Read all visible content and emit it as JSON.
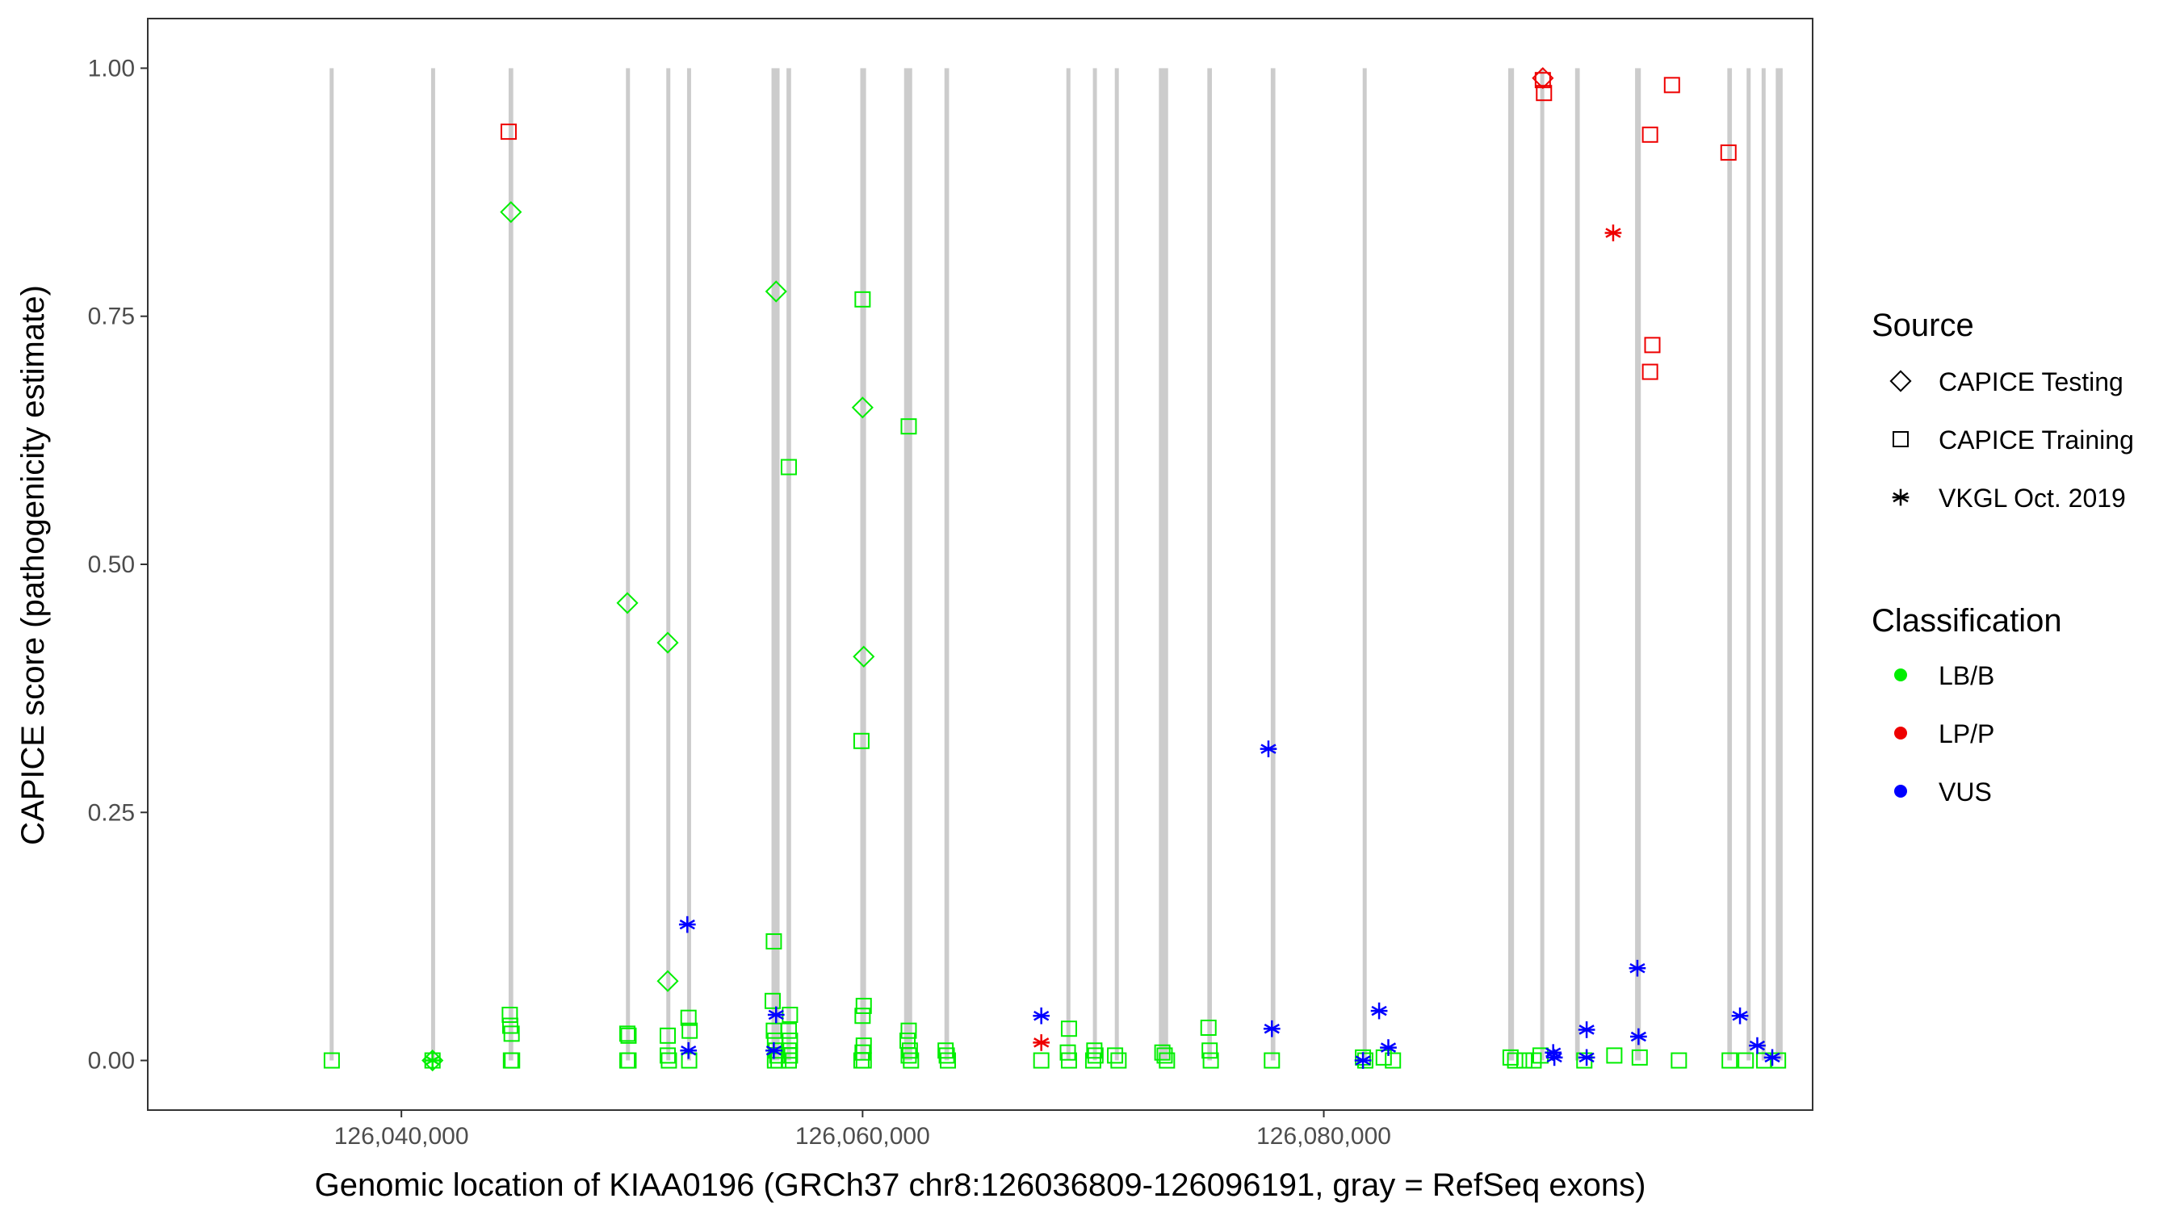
{
  "chart_data": {
    "type": "scatter",
    "xlabel": "Genomic location of KIAA0196 (GRCh37 chr8:126036809-126096191, gray = RefSeq exons)",
    "ylabel": "CAPICE score (pathogenicity estimate)",
    "xlim": [
      126029000,
      126101200
    ],
    "ylim": [
      -0.05,
      1.05
    ],
    "x_ticks": [
      126040000,
      126060000,
      126080000
    ],
    "x_tick_labels": [
      "126,040,000",
      "126,060,000",
      "126,080,000"
    ],
    "y_ticks": [
      0,
      0.25,
      0.5,
      0.75,
      1
    ],
    "y_tick_labels": [
      "0.00",
      "0.25",
      "0.50",
      "0.75",
      "1.00"
    ],
    "grid": false,
    "exons": [
      [
        126036900,
        126037050
      ],
      [
        126041300,
        126041450
      ],
      [
        126044650,
        126044850
      ],
      [
        126049750,
        126049900
      ],
      [
        126051500,
        126051650
      ],
      [
        126052400,
        126052550
      ],
      [
        126056050,
        126056400
      ],
      [
        126056700,
        126056900
      ],
      [
        126059900,
        126060150
      ],
      [
        126061800,
        126062150
      ],
      [
        126063550,
        126063750
      ],
      [
        126068850,
        126069000
      ],
      [
        126070000,
        126070150
      ],
      [
        126070950,
        126071100
      ],
      [
        126072850,
        126073250
      ],
      [
        126074950,
        126075150
      ],
      [
        126077700,
        126077900
      ],
      [
        126081700,
        126081850
      ],
      [
        126088000,
        126088250
      ],
      [
        126089400,
        126089550
      ],
      [
        126090900,
        126091100
      ],
      [
        126093500,
        126093750
      ],
      [
        126097500,
        126097700
      ],
      [
        126098350,
        126098500
      ],
      [
        126099000,
        126099150
      ],
      [
        126099600,
        126099900
      ]
    ],
    "legend": {
      "position": "right",
      "source_title": "Source",
      "source_items": [
        {
          "label": "CAPICE Testing",
          "shape": "diamond"
        },
        {
          "label": "CAPICE Training",
          "shape": "square"
        },
        {
          "label": "VKGL Oct. 2019",
          "shape": "asterisk"
        }
      ],
      "class_title": "Classification",
      "class_items": [
        {
          "label": "LB/B",
          "color": "#00ee00"
        },
        {
          "label": "LP/P",
          "color": "#ee0000"
        },
        {
          "label": "VUS",
          "color": "#0000ff"
        }
      ]
    },
    "series": [
      {
        "source": "CAPICE Testing",
        "class": "LB/B",
        "shape": "diamond",
        "color": "#00ee00",
        "points": [
          [
            126044750,
            0.855
          ],
          [
            126049800,
            0.461
          ],
          [
            126051550,
            0.421
          ],
          [
            126051550,
            0.08
          ],
          [
            126056250,
            0.775
          ],
          [
            126060000,
            0.658
          ],
          [
            126060050,
            0.407
          ],
          [
            126041350,
            0.0
          ]
        ]
      },
      {
        "source": "CAPICE Testing",
        "class": "LP/P",
        "shape": "diamond",
        "color": "#ee0000",
        "points": [
          [
            126089500,
            0.99
          ]
        ]
      },
      {
        "source": "CAPICE Training",
        "class": "LB/B",
        "shape": "square",
        "color": "#00ee00",
        "points": [
          [
            126036980,
            0.0
          ],
          [
            126041350,
            0.0
          ],
          [
            126044700,
            0.046
          ],
          [
            126044720,
            0.035
          ],
          [
            126044780,
            0.027
          ],
          [
            126044750,
            0.0
          ],
          [
            126044800,
            0.0
          ],
          [
            126049800,
            0.027
          ],
          [
            126049850,
            0.025
          ],
          [
            126049800,
            0.0
          ],
          [
            126049850,
            0.0
          ],
          [
            126051550,
            0.025
          ],
          [
            126051550,
            0.005
          ],
          [
            126051600,
            0.0
          ],
          [
            126052450,
            0.043
          ],
          [
            126052500,
            0.03
          ],
          [
            126052480,
            0.0
          ],
          [
            126056150,
            0.12
          ],
          [
            126056100,
            0.06
          ],
          [
            126056150,
            0.03
          ],
          [
            126056200,
            0.02
          ],
          [
            126056250,
            0.01
          ],
          [
            126056300,
            0.005
          ],
          [
            126056200,
            0.0
          ],
          [
            126056350,
            0.0
          ],
          [
            126056800,
            0.598
          ],
          [
            126056850,
            0.046
          ],
          [
            126056800,
            0.03
          ],
          [
            126056850,
            0.02
          ],
          [
            126056800,
            0.01
          ],
          [
            126056850,
            0.005
          ],
          [
            126056800,
            0.0
          ],
          [
            126060000,
            0.767
          ],
          [
            126059950,
            0.322
          ],
          [
            126060050,
            0.055
          ],
          [
            126060000,
            0.045
          ],
          [
            126060050,
            0.015
          ],
          [
            126060000,
            0.008
          ],
          [
            126060050,
            0.0
          ],
          [
            126059950,
            0.0
          ],
          [
            126062000,
            0.639
          ],
          [
            126062000,
            0.03
          ],
          [
            126061950,
            0.02
          ],
          [
            126062050,
            0.01
          ],
          [
            126062000,
            0.005
          ],
          [
            126062100,
            0.0
          ],
          [
            126063600,
            0.01
          ],
          [
            126063650,
            0.005
          ],
          [
            126063700,
            0.0
          ],
          [
            126067750,
            0.0
          ],
          [
            126068950,
            0.032
          ],
          [
            126068900,
            0.008
          ],
          [
            126068950,
            0.0
          ],
          [
            126070050,
            0.01
          ],
          [
            126070100,
            0.005
          ],
          [
            126070000,
            0.0
          ],
          [
            126070950,
            0.005
          ],
          [
            126071100,
            0.0
          ],
          [
            126073000,
            0.008
          ],
          [
            126073100,
            0.005
          ],
          [
            126073200,
            0.0
          ],
          [
            126075000,
            0.033
          ],
          [
            126075050,
            0.01
          ],
          [
            126075100,
            0.0
          ],
          [
            126077750,
            0.0
          ],
          [
            126081700,
            0.003
          ],
          [
            126081800,
            0.0
          ],
          [
            126082600,
            0.003
          ],
          [
            126083000,
            0.0
          ],
          [
            126088100,
            0.003
          ],
          [
            126088300,
            0.0
          ],
          [
            126088700,
            0.0
          ],
          [
            126089100,
            0.0
          ],
          [
            126089400,
            0.005
          ],
          [
            126091300,
            0.0
          ],
          [
            126092600,
            0.005
          ],
          [
            126093700,
            0.003
          ],
          [
            126095400,
            0.0
          ],
          [
            126097600,
            0.0
          ],
          [
            126098300,
            0.0
          ],
          [
            126099100,
            0.0
          ],
          [
            126099700,
            0.0
          ]
        ]
      },
      {
        "source": "CAPICE Training",
        "class": "LP/P",
        "shape": "square",
        "color": "#ee0000",
        "points": [
          [
            126044650,
            0.936
          ],
          [
            126089500,
            0.988
          ],
          [
            126089550,
            0.975
          ],
          [
            126094150,
            0.933
          ],
          [
            126094250,
            0.721
          ],
          [
            126094150,
            0.694
          ],
          [
            126095100,
            0.983
          ],
          [
            126097550,
            0.915
          ]
        ]
      },
      {
        "source": "VKGL Oct. 2019",
        "class": "LB/B",
        "shape": "asterisk",
        "color": "#00ee00",
        "points": [
          [
            126041350,
            0.0
          ]
        ]
      },
      {
        "source": "VKGL Oct. 2019",
        "class": "LP/P",
        "shape": "asterisk",
        "color": "#ee0000",
        "points": [
          [
            126067750,
            0.018
          ],
          [
            126092550,
            0.834
          ]
        ]
      },
      {
        "source": "VKGL Oct. 2019",
        "class": "VUS",
        "shape": "asterisk",
        "color": "#0000ff",
        "points": [
          [
            126052400,
            0.137
          ],
          [
            126052450,
            0.01
          ],
          [
            126056250,
            0.046
          ],
          [
            126056150,
            0.01
          ],
          [
            126067750,
            0.045
          ],
          [
            126077600,
            0.314
          ],
          [
            126077750,
            0.032
          ],
          [
            126081700,
            0.0
          ],
          [
            126082400,
            0.05
          ],
          [
            126082800,
            0.013
          ],
          [
            126089950,
            0.008
          ],
          [
            126090000,
            0.003
          ],
          [
            126091400,
            0.031
          ],
          [
            126091400,
            0.003
          ],
          [
            126093600,
            0.093
          ],
          [
            126093650,
            0.024
          ],
          [
            126098050,
            0.045
          ],
          [
            126098800,
            0.015
          ],
          [
            126099450,
            0.003
          ]
        ]
      }
    ]
  }
}
